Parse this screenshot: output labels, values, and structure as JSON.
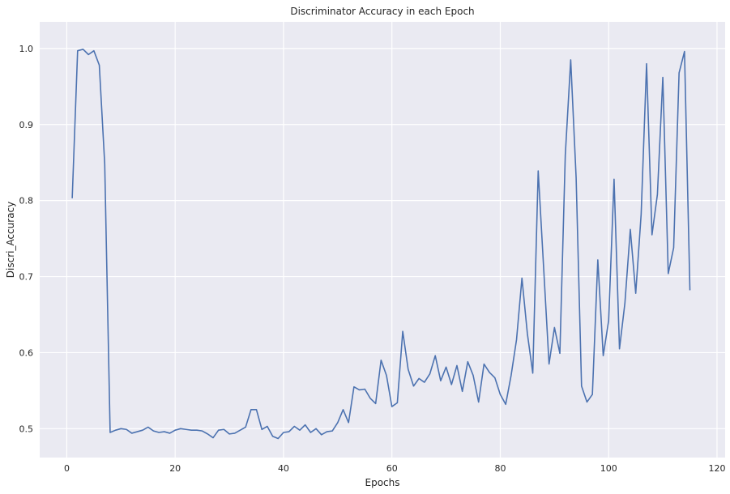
{
  "chart_data": {
    "type": "line",
    "title": "Discriminator Accuracy in each Epoch",
    "xlabel": "Epochs",
    "ylabel": "Discri_Accuracy",
    "xlim": [
      -5,
      121.5
    ],
    "ylim": [
      0.462,
      1.035
    ],
    "x_ticks": [
      0,
      20,
      40,
      60,
      80,
      100,
      120
    ],
    "y_ticks": [
      0.5,
      0.6,
      0.7,
      0.8,
      0.9,
      1.0
    ],
    "y_tick_labels": [
      "0.5",
      "0.6",
      "0.7",
      "0.8",
      "0.9",
      "1.0"
    ],
    "grid": true,
    "colors": {
      "background": "#eaeaf2",
      "grid": "#ffffff",
      "line": "#4c72b0"
    },
    "series": [
      {
        "x": [
          1,
          2,
          3,
          4,
          5,
          6,
          7,
          8,
          9,
          10,
          11,
          12,
          13,
          14,
          15,
          16,
          17,
          18,
          19,
          20,
          21,
          22,
          23,
          24,
          25,
          26,
          27,
          28,
          29,
          30,
          31,
          32,
          33,
          34,
          35,
          36,
          37,
          38,
          39,
          40,
          41,
          42,
          43,
          44,
          45,
          46,
          47,
          48,
          49,
          50,
          51,
          52,
          53,
          54,
          55,
          56,
          57,
          58,
          59,
          60,
          61,
          62,
          63,
          64,
          65,
          66,
          67,
          68,
          69,
          70,
          71,
          72,
          73,
          74,
          75,
          76,
          77,
          78,
          79,
          80,
          81,
          82,
          83,
          84,
          85,
          86,
          87,
          88,
          89,
          90,
          91,
          92,
          93,
          94,
          95,
          96,
          97,
          98,
          99,
          100,
          101,
          102,
          103,
          104,
          105,
          106,
          107,
          108,
          109,
          110,
          111,
          112,
          113,
          114,
          115
        ],
        "values": [
          0.803,
          0.997,
          0.999,
          0.992,
          0.997,
          0.978,
          0.848,
          0.495,
          0.498,
          0.5,
          0.499,
          0.494,
          0.496,
          0.498,
          0.502,
          0.497,
          0.495,
          0.496,
          0.494,
          0.498,
          0.5,
          0.499,
          0.498,
          0.498,
          0.497,
          0.493,
          0.488,
          0.498,
          0.499,
          0.493,
          0.494,
          0.498,
          0.502,
          0.525,
          0.525,
          0.499,
          0.503,
          0.49,
          0.487,
          0.495,
          0.496,
          0.503,
          0.498,
          0.505,
          0.495,
          0.5,
          0.492,
          0.496,
          0.497,
          0.508,
          0.525,
          0.508,
          0.555,
          0.551,
          0.552,
          0.54,
          0.533,
          0.59,
          0.57,
          0.529,
          0.534,
          0.628,
          0.578,
          0.556,
          0.566,
          0.561,
          0.572,
          0.596,
          0.563,
          0.581,
          0.558,
          0.583,
          0.549,
          0.588,
          0.57,
          0.535,
          0.585,
          0.574,
          0.567,
          0.545,
          0.532,
          0.57,
          0.617,
          0.698,
          0.625,
          0.573,
          0.839,
          0.712,
          0.585,
          0.633,
          0.599,
          0.86,
          0.985,
          0.83,
          0.556,
          0.535,
          0.545,
          0.722,
          0.596,
          0.642,
          0.828,
          0.605,
          0.665,
          0.762,
          0.678,
          0.782,
          0.98,
          0.755,
          0.808,
          0.962,
          0.704,
          0.738,
          0.968,
          0.996,
          0.682
        ]
      }
    ]
  }
}
